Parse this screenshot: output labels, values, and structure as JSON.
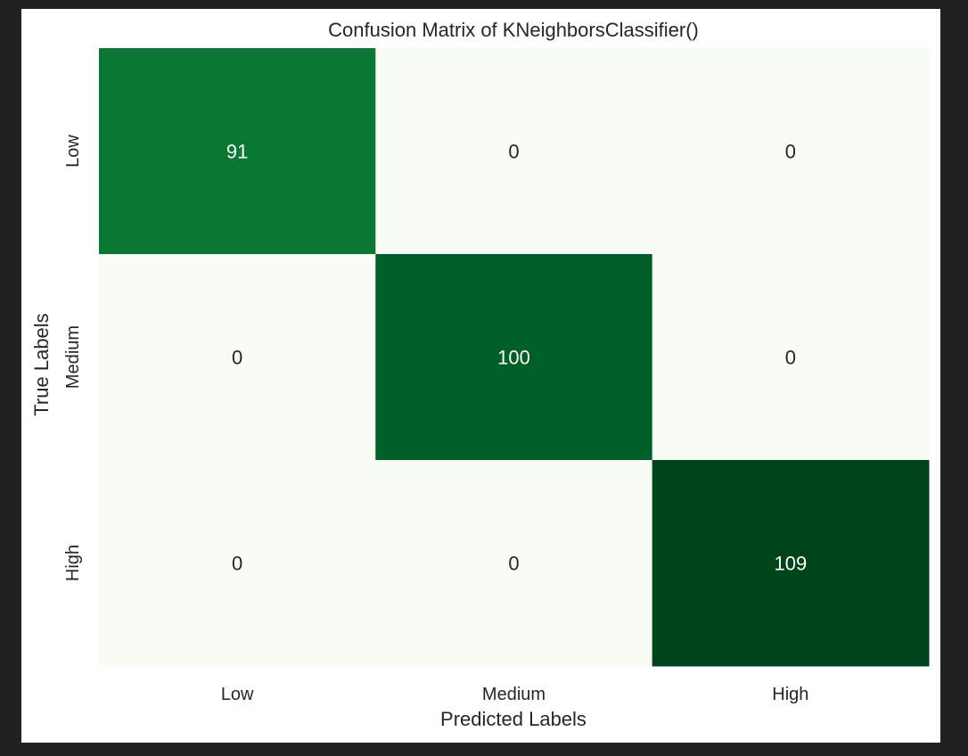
{
  "colors": {
    "page_background": "#212121",
    "figure_background": "#ffffff",
    "low_value_cell": "#f7fcf5",
    "text_dark": "#262626",
    "text_light": "#ffffff",
    "colormap": "Greens"
  },
  "chart_data": {
    "type": "heatmap",
    "title": "Confusion Matrix of KNeighborsClassifier()",
    "xlabel": "Predicted Labels",
    "ylabel": "True Labels",
    "x_categories": [
      "Low",
      "Medium",
      "High"
    ],
    "y_categories": [
      "Low",
      "Medium",
      "High"
    ],
    "matrix": [
      [
        91,
        0,
        0
      ],
      [
        0,
        100,
        0
      ],
      [
        0,
        0,
        109
      ]
    ],
    "colorbar": false,
    "annotated": true
  }
}
